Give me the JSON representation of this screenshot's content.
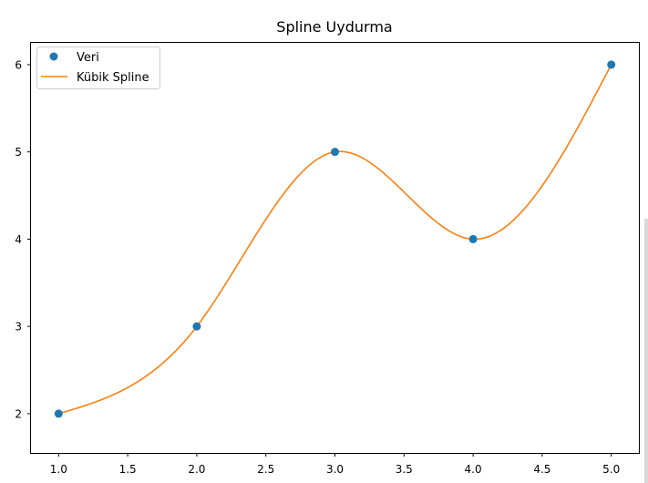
{
  "chart_data": {
    "type": "line",
    "title": "Spline Uydurma",
    "xlabel": "",
    "ylabel": "",
    "xlim": [
      0.8,
      5.2
    ],
    "ylim": [
      1.55,
      6.25
    ],
    "x_ticks": [
      "1.0",
      "1.5",
      "2.0",
      "2.5",
      "3.0",
      "3.5",
      "4.0",
      "4.5",
      "5.0"
    ],
    "y_ticks": [
      "2",
      "3",
      "4",
      "5",
      "6"
    ],
    "grid": false,
    "legend_position": "top-left",
    "series": [
      {
        "name": "Veri",
        "kind": "scatter",
        "color": "#1f77b4",
        "x": [
          1,
          2,
          3,
          4,
          5
        ],
        "y": [
          2,
          3,
          5,
          4,
          6
        ]
      },
      {
        "name": "Kübik Spline",
        "kind": "line",
        "color": "#ff7f0e",
        "interpolation": "natural-cubic-spline",
        "x": [
          1,
          2,
          3,
          4,
          5
        ],
        "y": [
          2,
          3,
          5,
          4,
          6
        ]
      }
    ]
  }
}
